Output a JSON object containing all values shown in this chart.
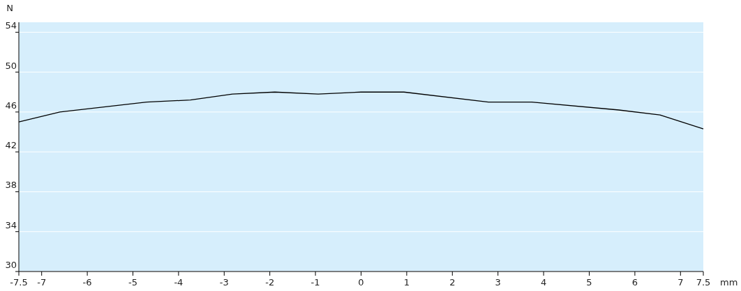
{
  "chart_data": {
    "type": "line",
    "xlabel": "mm",
    "ylabel": "N",
    "x": [
      -7.5,
      -6.6,
      -4.7,
      -3.74,
      -2.82,
      -1.89,
      -0.94,
      0,
      0.94,
      2.79,
      3.74,
      5.65,
      6.55,
      7.5
    ],
    "series": [
      {
        "color": "#000000",
        "values": [
          45.0,
          46.0,
          47.0,
          47.2,
          47.8,
          48.0,
          47.8,
          48.0,
          48.0,
          47.0,
          47.0,
          46.2,
          45.7,
          44.3
        ]
      }
    ],
    "xlim": [
      -7.5,
      7.5
    ],
    "xticks": [
      -7.5,
      -7,
      -6,
      -5,
      -4,
      -3,
      -2,
      -1,
      0,
      1,
      2,
      3,
      4,
      5,
      6,
      7,
      7.5
    ],
    "ylim": [
      30,
      55
    ],
    "yticks": [
      30,
      34,
      38,
      42,
      46,
      50,
      54
    ],
    "grid": "y",
    "marker": "none",
    "line_style": "solid"
  }
}
